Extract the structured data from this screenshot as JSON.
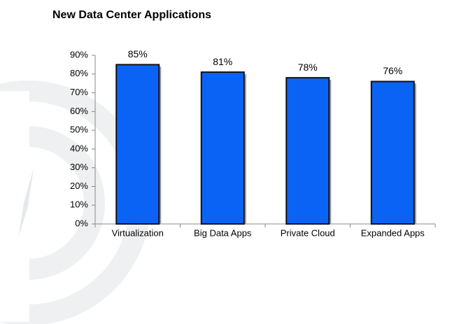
{
  "chart_data": {
    "type": "bar",
    "title": "New Data Center Applications",
    "categories": [
      "Virtualization",
      "Big Data Apps",
      "Private Cloud",
      "Expanded Apps"
    ],
    "values": [
      85,
      81,
      78,
      76
    ],
    "value_labels": [
      "85%",
      "81%",
      "78%",
      "76%"
    ],
    "color": "#0b63f6",
    "ylim": [
      0,
      90
    ],
    "yticks": [
      {
        "value": 0,
        "label": "0%"
      },
      {
        "value": 10,
        "label": "10%"
      },
      {
        "value": 20,
        "label": "20%"
      },
      {
        "value": 30,
        "label": "30%"
      },
      {
        "value": 40,
        "label": "40%"
      },
      {
        "value": 50,
        "label": "50%"
      },
      {
        "value": 60,
        "label": "60%"
      },
      {
        "value": 70,
        "label": "70%"
      },
      {
        "value": 80,
        "label": "80%"
      },
      {
        "value": 90,
        "label": "90%"
      }
    ],
    "grid": false
  }
}
